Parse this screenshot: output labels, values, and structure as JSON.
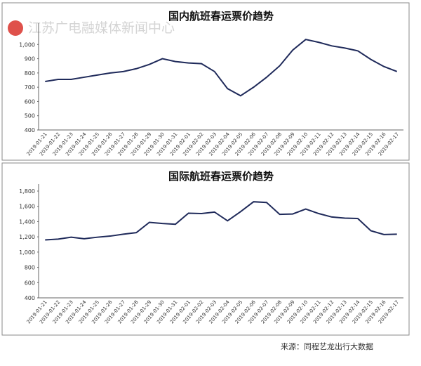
{
  "watermark": "江苏广电融媒体新闻中心",
  "source": "来源：同程艺龙出行大数据",
  "chart_data": [
    {
      "type": "line",
      "title": "国内航班春运票价趋势",
      "categories": [
        "2019-01-21",
        "2019-01-22",
        "2019-01-23",
        "2019-01-24",
        "2019-01-25",
        "2019-01-26",
        "2019-01-27",
        "2019-01-28",
        "2019-01-29",
        "2019-01-30",
        "2019-01-31",
        "2019-02-01",
        "2019-02-02",
        "2019-02-03",
        "2019-02-04",
        "2019-02-05",
        "2019-02-06",
        "2019-02-07",
        "2019-02-08",
        "2019-02-09",
        "2019-02-10",
        "2019-02-11",
        "2019-02-12",
        "2019-02-13",
        "2019-02-14",
        "2019-02-15",
        "2019-02-16",
        "2019-02-17"
      ],
      "series": [
        {
          "color": "#1f2a5a",
          "values": [
            740,
            755,
            755,
            770,
            785,
            800,
            810,
            830,
            860,
            900,
            880,
            870,
            865,
            810,
            690,
            640,
            700,
            770,
            850,
            960,
            1035,
            1015,
            990,
            975,
            955,
            895,
            845,
            810
          ]
        }
      ],
      "ylim": [
        400,
        1100
      ],
      "yticks": [
        400,
        500,
        600,
        700,
        800,
        900,
        {
          "value": 1000,
          "label": "1,000"
        }
      ]
    },
    {
      "type": "line",
      "title": "国际航班春运票价趋势",
      "categories": [
        "2019-01-21",
        "2019-01-22",
        "2019-01-23",
        "2019-01-24",
        "2019-01-25",
        "2019-01-26",
        "2019-01-27",
        "2019-01-28",
        "2019-01-29",
        "2019-01-30",
        "2019-01-31",
        "2019-02-01",
        "2019-02-02",
        "2019-02-03",
        "2019-02-04",
        "2019-02-05",
        "2019-02-06",
        "2019-02-07",
        "2019-02-08",
        "2019-02-09",
        "2019-02-10",
        "2019-02-11",
        "2019-02-12",
        "2019-02-13",
        "2019-02-14",
        "2019-02-15",
        "2019-02-16",
        "2019-02-17"
      ],
      "series": [
        {
          "color": "#1f2a5a",
          "values": [
            1160,
            1170,
            1195,
            1175,
            1195,
            1210,
            1235,
            1255,
            1390,
            1375,
            1365,
            1510,
            1505,
            1525,
            1410,
            1530,
            1660,
            1650,
            1495,
            1500,
            1565,
            1505,
            1460,
            1445,
            1440,
            1280,
            1230,
            1235
          ]
        }
      ],
      "ylim": [
        400,
        1800
      ],
      "yticks": [
        400,
        600,
        800,
        {
          "value": 1000,
          "label": "1,000"
        },
        {
          "value": 1200,
          "label": "1,200"
        },
        {
          "value": 1400,
          "label": "1,400"
        },
        {
          "value": 1600,
          "label": "1,600"
        },
        {
          "value": 1800,
          "label": "1,800"
        }
      ]
    }
  ]
}
